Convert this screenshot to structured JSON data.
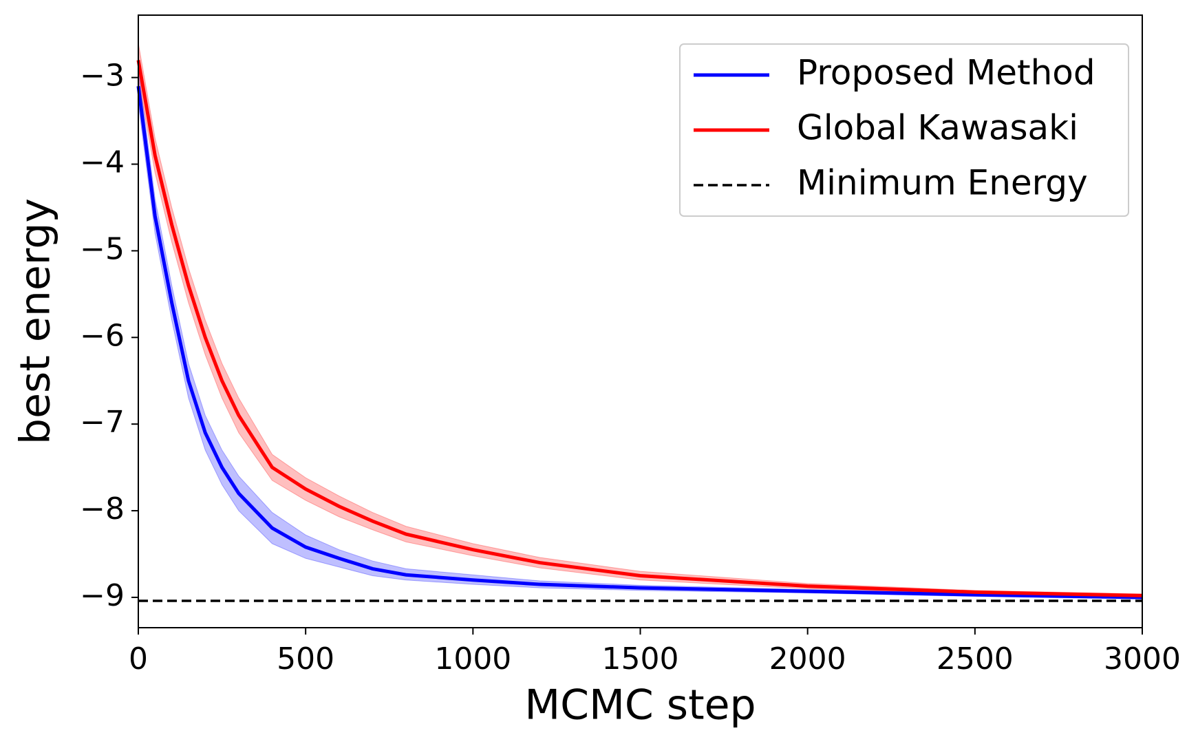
{
  "chart_data": {
    "type": "line",
    "xlabel": "MCMC step",
    "ylabel": "best energy",
    "x": [
      0,
      50,
      100,
      150,
      200,
      250,
      300,
      400,
      500,
      600,
      700,
      800,
      1000,
      1200,
      1500,
      2000,
      2500,
      3000
    ],
    "series": [
      {
        "name": "Proposed Method",
        "color": "#0000ff",
        "values": [
          -3.1,
          -4.6,
          -5.6,
          -6.5,
          -7.1,
          -7.5,
          -7.8,
          -8.2,
          -8.42,
          -8.55,
          -8.67,
          -8.74,
          -8.8,
          -8.85,
          -8.89,
          -8.93,
          -8.97,
          -9.0
        ],
        "lower": [
          -3.3,
          -4.8,
          -5.8,
          -6.7,
          -7.3,
          -7.7,
          -8.0,
          -8.38,
          -8.55,
          -8.65,
          -8.75,
          -8.8,
          -8.85,
          -8.89,
          -8.92,
          -8.95,
          -8.99,
          -9.02
        ],
        "upper": [
          -2.9,
          -4.4,
          -5.4,
          -6.3,
          -6.9,
          -7.3,
          -7.6,
          -8.02,
          -8.28,
          -8.45,
          -8.58,
          -8.67,
          -8.74,
          -8.81,
          -8.86,
          -8.91,
          -8.95,
          -8.98
        ]
      },
      {
        "name": "Global Kawasaki",
        "color": "#ff0000",
        "values": [
          -2.8,
          -3.9,
          -4.7,
          -5.4,
          -6.0,
          -6.5,
          -6.9,
          -7.5,
          -7.75,
          -7.95,
          -8.12,
          -8.27,
          -8.45,
          -8.6,
          -8.75,
          -8.87,
          -8.94,
          -8.98
        ],
        "lower": [
          -3.0,
          -4.1,
          -4.9,
          -5.6,
          -6.2,
          -6.7,
          -7.1,
          -7.65,
          -7.88,
          -8.07,
          -8.22,
          -8.36,
          -8.52,
          -8.66,
          -8.8,
          -8.9,
          -8.96,
          -9.0
        ],
        "upper": [
          -2.6,
          -3.7,
          -4.5,
          -5.2,
          -5.8,
          -6.3,
          -6.7,
          -7.35,
          -7.62,
          -7.83,
          -8.02,
          -8.18,
          -8.38,
          -8.54,
          -8.7,
          -8.84,
          -8.92,
          -8.96
        ]
      }
    ],
    "hlines": [
      {
        "name": "Minimum Energy",
        "value": -9.04,
        "color": "#000000",
        "dashed": true
      }
    ],
    "xlim": [
      0,
      3000
    ],
    "xticks": [
      0,
      500,
      1000,
      1500,
      2000,
      2500,
      3000
    ],
    "ylim": [
      -9.35,
      -2.28
    ],
    "yticks": [
      {
        "value": -9,
        "label": "−9"
      },
      {
        "value": -8,
        "label": "−8"
      },
      {
        "value": -7,
        "label": "−7"
      },
      {
        "value": -6,
        "label": "−6"
      },
      {
        "value": -5,
        "label": "−5"
      },
      {
        "value": -4,
        "label": "−4"
      },
      {
        "value": -3,
        "label": "−3"
      }
    ],
    "legend": "upper right",
    "band_opacity": 0.25
  }
}
